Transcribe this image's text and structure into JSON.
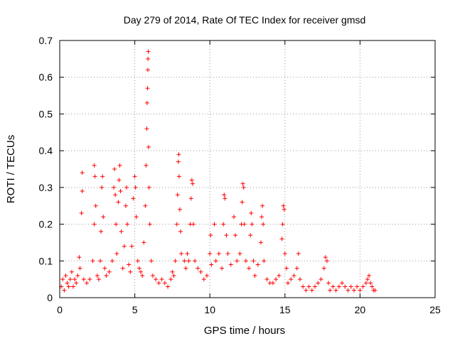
{
  "chart_data": {
    "type": "scatter",
    "title": "Day 279 of 2014, Rate Of TEC Index for receiver gmsd",
    "xlabel": "GPS time / hours",
    "ylabel": "ROTI / TECUs",
    "xlim": [
      0,
      25
    ],
    "ylim": [
      0,
      0.7
    ],
    "x_ticks": [
      0,
      5,
      10,
      15,
      20,
      25
    ],
    "y_ticks": [
      0,
      0.1,
      0.2,
      0.3,
      0.4,
      0.5,
      0.6,
      0.7
    ],
    "grid": true,
    "marker": "+",
    "color": "#ff0000",
    "series": [
      {
        "points": [
          [
            0.1,
            0.03
          ],
          [
            0.2,
            0.05
          ],
          [
            0.3,
            0.02
          ],
          [
            0.4,
            0.06
          ],
          [
            0.5,
            0.04
          ],
          [
            0.6,
            0.03
          ],
          [
            0.7,
            0.05
          ],
          [
            0.8,
            0.07
          ],
          [
            0.9,
            0.03
          ],
          [
            1.0,
            0.05
          ],
          [
            1.1,
            0.04
          ],
          [
            1.2,
            0.06
          ],
          [
            1.3,
            0.11
          ],
          [
            1.35,
            0.08
          ],
          [
            1.45,
            0.23
          ],
          [
            1.5,
            0.29
          ],
          [
            1.5,
            0.34
          ],
          [
            1.6,
            0.05
          ],
          [
            1.8,
            0.04
          ],
          [
            2.0,
            0.05
          ],
          [
            2.2,
            0.1
          ],
          [
            2.3,
            0.2
          ],
          [
            2.3,
            0.36
          ],
          [
            2.35,
            0.33
          ],
          [
            2.4,
            0.25
          ],
          [
            2.5,
            0.06
          ],
          [
            2.6,
            0.05
          ],
          [
            2.7,
            0.1
          ],
          [
            2.75,
            0.18
          ],
          [
            2.8,
            0.3
          ],
          [
            2.85,
            0.33
          ],
          [
            2.9,
            0.22
          ],
          [
            3.0,
            0.08
          ],
          [
            3.1,
            0.06
          ],
          [
            3.3,
            0.07
          ],
          [
            3.5,
            0.1
          ],
          [
            3.6,
            0.3
          ],
          [
            3.65,
            0.35
          ],
          [
            3.7,
            0.28
          ],
          [
            3.75,
            0.2
          ],
          [
            3.8,
            0.12
          ],
          [
            3.9,
            0.26
          ],
          [
            3.95,
            0.32
          ],
          [
            4.0,
            0.36
          ],
          [
            4.05,
            0.29
          ],
          [
            4.1,
            0.18
          ],
          [
            4.2,
            0.08
          ],
          [
            4.3,
            0.14
          ],
          [
            4.4,
            0.25
          ],
          [
            4.45,
            0.3
          ],
          [
            4.5,
            0.2
          ],
          [
            4.6,
            0.09
          ],
          [
            4.7,
            0.07
          ],
          [
            4.8,
            0.14
          ],
          [
            4.9,
            0.27
          ],
          [
            5.0,
            0.33
          ],
          [
            5.05,
            0.3
          ],
          [
            5.1,
            0.22
          ],
          [
            5.2,
            0.1
          ],
          [
            5.3,
            0.08
          ],
          [
            5.4,
            0.07
          ],
          [
            5.5,
            0.06
          ],
          [
            5.6,
            0.15
          ],
          [
            5.7,
            0.25
          ],
          [
            5.75,
            0.36
          ],
          [
            5.8,
            0.46
          ],
          [
            5.82,
            0.53
          ],
          [
            5.85,
            0.57
          ],
          [
            5.87,
            0.62
          ],
          [
            5.88,
            0.65
          ],
          [
            5.9,
            0.67
          ],
          [
            5.92,
            0.41
          ],
          [
            5.95,
            0.3
          ],
          [
            6.0,
            0.2
          ],
          [
            6.1,
            0.1
          ],
          [
            6.2,
            0.06
          ],
          [
            6.4,
            0.05
          ],
          [
            6.6,
            0.04
          ],
          [
            6.8,
            0.05
          ],
          [
            7.0,
            0.04
          ],
          [
            7.2,
            0.03
          ],
          [
            7.4,
            0.05
          ],
          [
            7.5,
            0.07
          ],
          [
            7.6,
            0.06
          ],
          [
            7.7,
            0.1
          ],
          [
            7.8,
            0.2
          ],
          [
            7.85,
            0.28
          ],
          [
            7.9,
            0.37
          ],
          [
            7.93,
            0.39
          ],
          [
            7.95,
            0.33
          ],
          [
            8.0,
            0.24
          ],
          [
            8.05,
            0.18
          ],
          [
            8.1,
            0.12
          ],
          [
            8.3,
            0.1
          ],
          [
            8.4,
            0.08
          ],
          [
            8.5,
            0.12
          ],
          [
            8.6,
            0.1
          ],
          [
            8.7,
            0.2
          ],
          [
            8.75,
            0.27
          ],
          [
            8.8,
            0.32
          ],
          [
            8.85,
            0.31
          ],
          [
            8.9,
            0.2
          ],
          [
            9.0,
            0.1
          ],
          [
            9.2,
            0.08
          ],
          [
            9.4,
            0.07
          ],
          [
            9.6,
            0.05
          ],
          [
            9.8,
            0.06
          ],
          [
            10.0,
            0.12
          ],
          [
            10.05,
            0.17
          ],
          [
            10.1,
            0.09
          ],
          [
            10.3,
            0.2
          ],
          [
            10.4,
            0.1
          ],
          [
            10.6,
            0.12
          ],
          [
            10.8,
            0.08
          ],
          [
            10.9,
            0.2
          ],
          [
            10.95,
            0.28
          ],
          [
            11.0,
            0.27
          ],
          [
            11.1,
            0.17
          ],
          [
            11.2,
            0.12
          ],
          [
            11.4,
            0.09
          ],
          [
            11.6,
            0.22
          ],
          [
            11.7,
            0.17
          ],
          [
            11.8,
            0.1
          ],
          [
            12.0,
            0.12
          ],
          [
            12.1,
            0.2
          ],
          [
            12.15,
            0.26
          ],
          [
            12.2,
            0.31
          ],
          [
            12.25,
            0.3
          ],
          [
            12.3,
            0.2
          ],
          [
            12.4,
            0.1
          ],
          [
            12.6,
            0.08
          ],
          [
            12.7,
            0.17
          ],
          [
            12.75,
            0.23
          ],
          [
            12.8,
            0.2
          ],
          [
            12.9,
            0.1
          ],
          [
            13.0,
            0.06
          ],
          [
            13.2,
            0.09
          ],
          [
            13.4,
            0.15
          ],
          [
            13.45,
            0.22
          ],
          [
            13.5,
            0.25
          ],
          [
            13.55,
            0.2
          ],
          [
            13.6,
            0.1
          ],
          [
            13.8,
            0.05
          ],
          [
            14.0,
            0.04
          ],
          [
            14.2,
            0.04
          ],
          [
            14.4,
            0.05
          ],
          [
            14.6,
            0.06
          ],
          [
            14.8,
            0.16
          ],
          [
            14.85,
            0.2
          ],
          [
            14.9,
            0.25
          ],
          [
            14.95,
            0.24
          ],
          [
            15.0,
            0.12
          ],
          [
            15.1,
            0.08
          ],
          [
            15.2,
            0.04
          ],
          [
            15.4,
            0.05
          ],
          [
            15.6,
            0.06
          ],
          [
            15.8,
            0.08
          ],
          [
            15.9,
            0.12
          ],
          [
            16.0,
            0.05
          ],
          [
            16.2,
            0.03
          ],
          [
            16.4,
            0.02
          ],
          [
            16.6,
            0.03
          ],
          [
            16.8,
            0.02
          ],
          [
            17.0,
            0.03
          ],
          [
            17.2,
            0.04
          ],
          [
            17.4,
            0.05
          ],
          [
            17.6,
            0.08
          ],
          [
            17.7,
            0.11
          ],
          [
            17.8,
            0.1
          ],
          [
            17.9,
            0.04
          ],
          [
            18.0,
            0.02
          ],
          [
            18.2,
            0.03
          ],
          [
            18.4,
            0.02
          ],
          [
            18.6,
            0.03
          ],
          [
            18.8,
            0.04
          ],
          [
            19.0,
            0.03
          ],
          [
            19.2,
            0.02
          ],
          [
            19.4,
            0.03
          ],
          [
            19.6,
            0.02
          ],
          [
            19.8,
            0.03
          ],
          [
            20.0,
            0.02
          ],
          [
            20.2,
            0.03
          ],
          [
            20.4,
            0.04
          ],
          [
            20.5,
            0.05
          ],
          [
            20.6,
            0.06
          ],
          [
            20.7,
            0.04
          ],
          [
            20.8,
            0.03
          ],
          [
            20.9,
            0.02
          ],
          [
            21.0,
            0.02
          ]
        ]
      }
    ]
  }
}
